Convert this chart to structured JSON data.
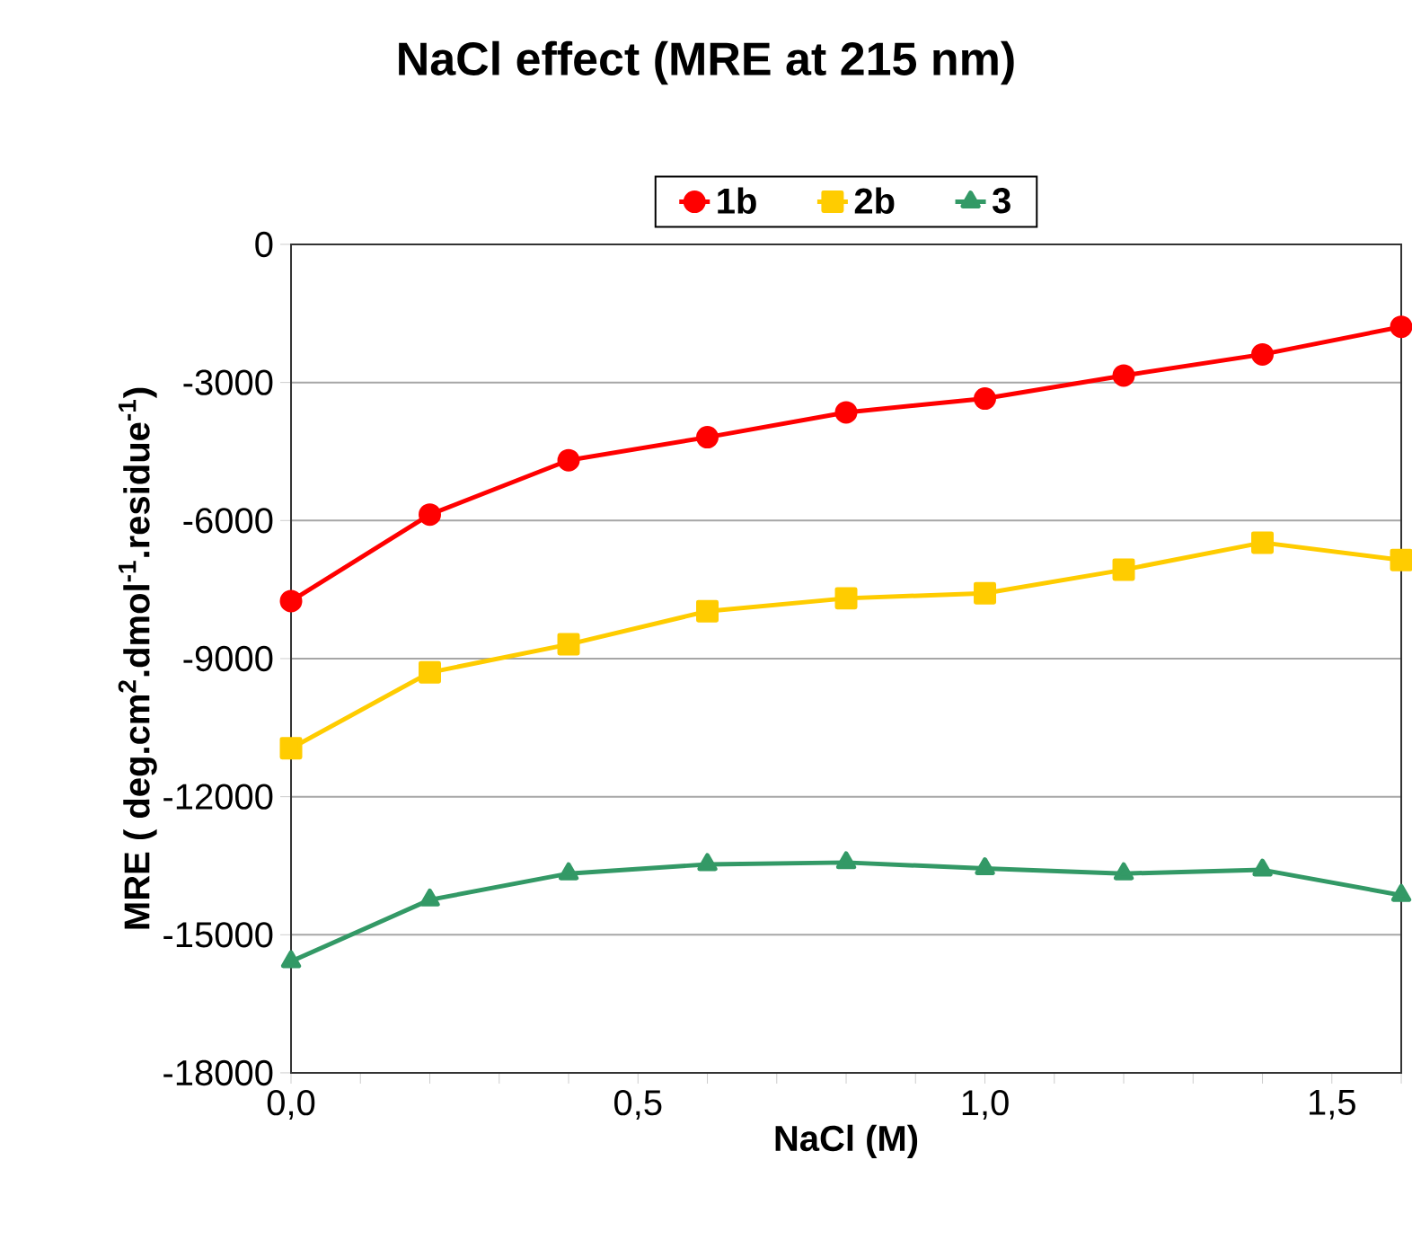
{
  "chart_data": {
    "type": "line",
    "title": "NaCl effect (MRE at 215 nm)",
    "xlabel": "NaCl (M)",
    "ylabel": "MRE  ( deg.cm$^{2}$.dmol$^{-1}$.residue$^{-1}$)",
    "x": [
      0,
      0.2,
      0.4,
      0.6,
      0.8,
      1.0,
      1.2,
      1.4,
      1.6
    ],
    "series": [
      {
        "name": "1b",
        "color": "#ff0000",
        "marker": "circle",
        "values": [
          -7750,
          -5870,
          -4690,
          -4190,
          -3650,
          -3350,
          -2850,
          -2390,
          -1790
        ]
      },
      {
        "name": "2b",
        "color": "#ffcc00",
        "marker": "square",
        "values": [
          -10950,
          -9300,
          -8690,
          -7970,
          -7690,
          -7580,
          -7070,
          -6480,
          -6860
        ]
      },
      {
        "name": "3",
        "color": "#339966",
        "marker": "triangle",
        "values": [
          -15580,
          -14240,
          -13670,
          -13470,
          -13430,
          -13560,
          -13670,
          -13590,
          -14140
        ]
      }
    ],
    "xlim": [
      0,
      1.6
    ],
    "ylim": [
      -18000,
      0
    ],
    "xticks": [
      {
        "value": 0,
        "label": "0,0"
      },
      {
        "value": 0.1,
        "label": null
      },
      {
        "value": 0.2,
        "label": null
      },
      {
        "value": 0.3,
        "label": null
      },
      {
        "value": 0.4,
        "label": null
      },
      {
        "value": 0.5,
        "label": "0,5"
      },
      {
        "value": 0.6,
        "label": null
      },
      {
        "value": 0.7,
        "label": null
      },
      {
        "value": 0.8,
        "label": null
      },
      {
        "value": 0.9,
        "label": null
      },
      {
        "value": 1.0,
        "label": "1,0"
      },
      {
        "value": 1.1,
        "label": null
      },
      {
        "value": 1.2,
        "label": null
      },
      {
        "value": 1.3,
        "label": null
      },
      {
        "value": 1.4,
        "label": null
      },
      {
        "value": 1.5,
        "label": "1,5"
      },
      {
        "value": 1.6,
        "label": null
      }
    ],
    "yticks": [
      -18000,
      -15000,
      -12000,
      -9000,
      -6000,
      -3000,
      0
    ],
    "grid": "y",
    "legend": "top",
    "line_style": "solid"
  }
}
